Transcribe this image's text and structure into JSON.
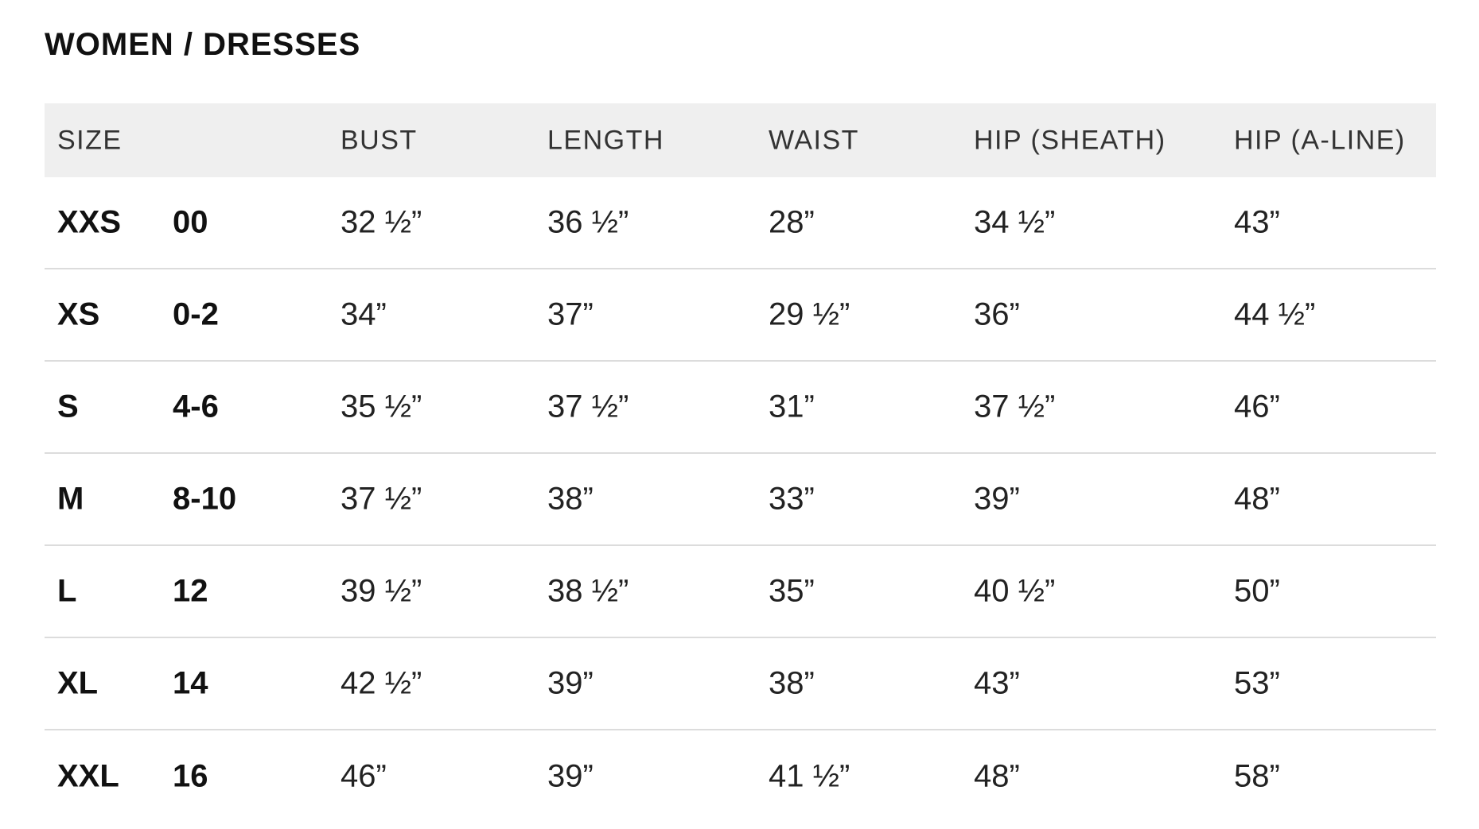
{
  "title": "WOMEN / DRESSES",
  "headers": [
    "SIZE",
    "BUST",
    "LENGTH",
    "WAIST",
    "HIP (SHEATH)",
    "HIP (A-LINE)"
  ],
  "rows": [
    [
      "XXS",
      "00",
      "32 ½”",
      "36 ½”",
      "28”",
      "34 ½”",
      "43”"
    ],
    [
      "XS",
      "0-2",
      "34”",
      "37”",
      "29 ½”",
      "36”",
      "44 ½”"
    ],
    [
      "S",
      "4-6",
      "35 ½”",
      "37 ½”",
      "31”",
      "37 ½”",
      "46”"
    ],
    [
      "M",
      "8-10",
      "37 ½”",
      "38”",
      "33”",
      "39”",
      "48”"
    ],
    [
      "L",
      "12",
      "39 ½”",
      "38 ½”",
      "35”",
      "40 ½”",
      "50”"
    ],
    [
      "XL",
      "14",
      "42 ½”",
      "39”",
      "38”",
      "43”",
      "53”"
    ],
    [
      "XXL",
      "16",
      "46”",
      "39”",
      "41 ½”",
      "48”",
      "58”"
    ]
  ]
}
